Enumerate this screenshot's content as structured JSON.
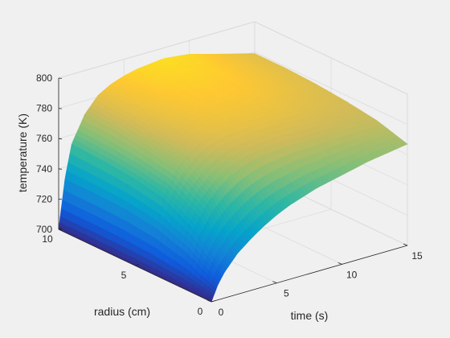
{
  "chart_data": {
    "type": "surface",
    "xlabel": "time (s)",
    "ylabel": "radius (cm)",
    "zlabel": "temperature (K)",
    "xlim": [
      0,
      15
    ],
    "ylim": [
      0,
      10
    ],
    "zlim": [
      700,
      800
    ],
    "x_ticks": [
      0,
      5,
      10,
      15
    ],
    "y_ticks": [
      0,
      5,
      10
    ],
    "z_ticks": [
      700,
      720,
      740,
      760,
      780,
      800
    ],
    "x_tick_labels": [
      "0",
      "5",
      "10",
      "15"
    ],
    "y_tick_labels": [
      "0",
      "5",
      "10"
    ],
    "z_tick_labels": [
      "700",
      "720",
      "740",
      "760",
      "780",
      "800"
    ],
    "colormap": "parula",
    "colormap_stops": [
      "#352a87",
      "#0f5cdd",
      "#1481d6",
      "#06a4ca",
      "#2eb7a4",
      "#87bf77",
      "#d1bb59",
      "#fec832",
      "#f9fb0e"
    ],
    "grid": true,
    "surface": {
      "time_samples": [
        0,
        0.5,
        1,
        2,
        3,
        4,
        5,
        6,
        8,
        10,
        12,
        15
      ],
      "radius_samples": [
        0,
        2,
        4,
        6,
        8,
        10
      ],
      "temperature": [
        [
          700,
          700,
          700,
          700,
          700,
          700
        ],
        [
          710,
          722,
          729,
          732,
          733,
          733
        ],
        [
          717,
          736,
          747,
          751,
          753,
          754
        ],
        [
          727,
          750,
          763,
          767,
          770,
          771
        ],
        [
          734,
          759,
          772,
          776,
          779,
          781
        ],
        [
          740,
          765,
          777,
          781,
          784,
          786
        ],
        [
          745,
          769,
          780,
          784,
          787,
          789
        ],
        [
          749,
          771,
          781,
          786,
          789,
          791
        ],
        [
          755,
          773,
          782,
          787,
          790,
          793
        ],
        [
          759,
          773,
          781,
          786,
          789,
          791
        ],
        [
          763,
          773,
          779,
          783,
          785,
          786
        ],
        [
          767,
          773,
          776,
          778,
          779,
          779
        ]
      ]
    }
  }
}
